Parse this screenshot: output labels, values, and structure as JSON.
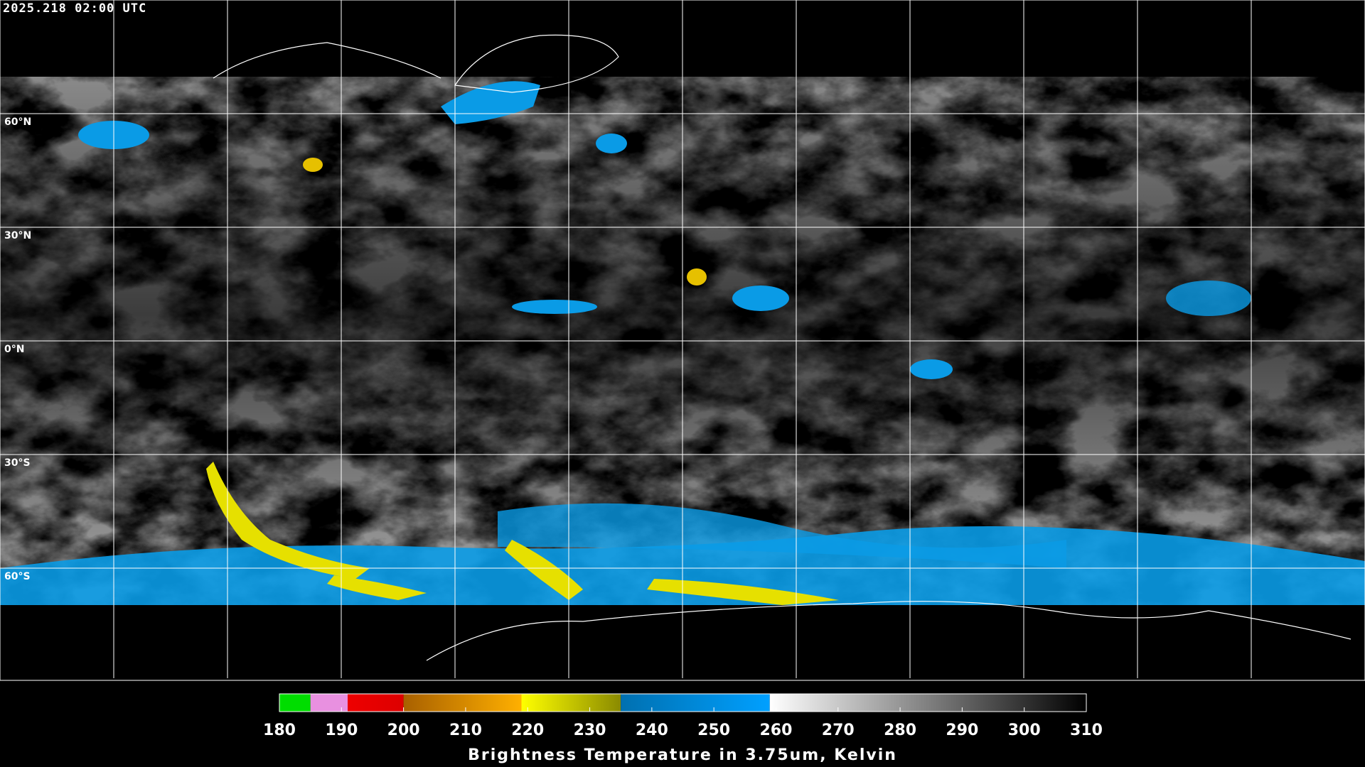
{
  "map": {
    "timestamp": "2025.218 02:00 UTC",
    "lat_labels": [
      {
        "value": 60,
        "label": "60°N"
      },
      {
        "value": 30,
        "label": "30°N"
      },
      {
        "value": 0,
        "label": "0°N"
      },
      {
        "value": -30,
        "label": "30°S"
      },
      {
        "value": -60,
        "label": "60°S"
      }
    ]
  },
  "colorbar": {
    "lim": [
      180,
      310
    ],
    "ticks": [
      180,
      190,
      200,
      210,
      220,
      230,
      240,
      250,
      260,
      270,
      280,
      290,
      300,
      310
    ],
    "segments": [
      {
        "from": 180,
        "to": 185,
        "color_start": "#00dd00",
        "color_end": "#00dd00"
      },
      {
        "from": 185,
        "to": 191,
        "color_start": "#e890e0",
        "color_end": "#e890e0"
      },
      {
        "from": 191,
        "to": 200,
        "color_start": "#ee0000",
        "color_end": "#dd0000"
      },
      {
        "from": 200,
        "to": 219,
        "color_start": "#a86000",
        "color_end": "#ffb000"
      },
      {
        "from": 219,
        "to": 235,
        "color_start": "#ffff00",
        "color_end": "#8a8a00"
      },
      {
        "from": 235,
        "to": 259,
        "color_start": "#0070b0",
        "color_end": "#00a0ff"
      },
      {
        "from": 259,
        "to": 310,
        "color_start": "#ffffff",
        "color_end": "#000000"
      }
    ],
    "label": "Brightness Temperature in 3.75um, Kelvin"
  }
}
